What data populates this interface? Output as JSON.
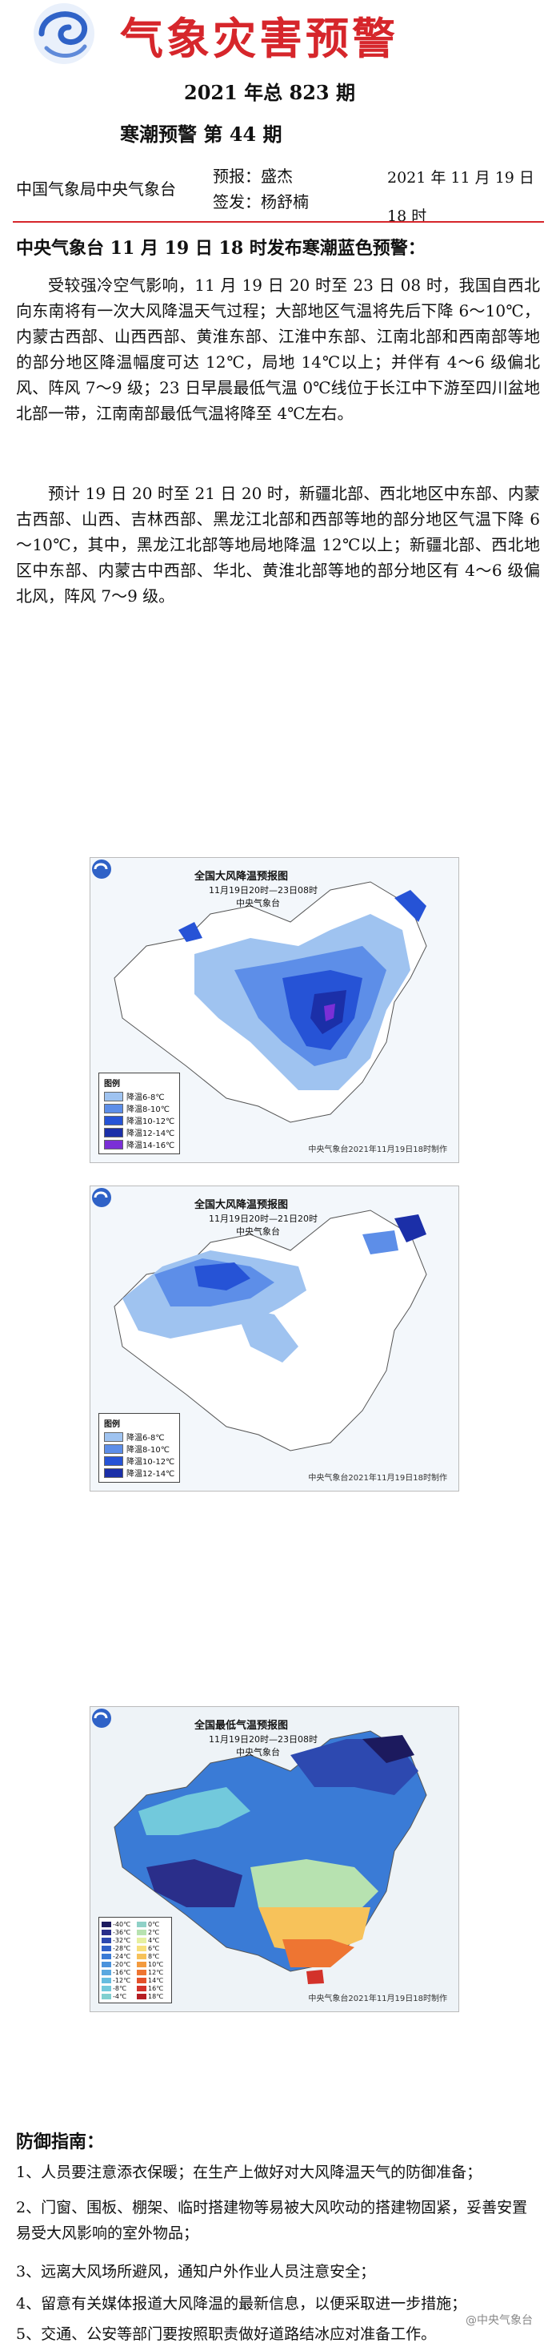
{
  "header": {
    "title": "气象灾害预警",
    "issue_total": "2021 年总 823 期",
    "issue_cold": "寒潮预警 第 44 期",
    "agency": "中国气象局中央气象台",
    "forecast_label": "预报：",
    "forecast_names": "盛杰",
    "sign_label": "签发：",
    "sign_name": "杨舒楠",
    "datetime": "2021 年 11 月 19 日 18 时"
  },
  "headline": "中央气象台 11 月 19 日 18 时发布寒潮蓝色预警：",
  "paragraphs": [
    "受较强冷空气影响，11 月 19 日 20 时至 23 日 08 时，我国自西北向东南将有一次大风降温天气过程；大部地区气温将先后下降 6～10℃，内蒙古西部、山西西部、黄淮东部、江淮中东部、江南北部和西南部等地的部分地区降温幅度可达 12℃，局地 14℃以上；并伴有 4～6 级偏北风、阵风 7～9 级；23 日早晨最低气温 0℃线位于长江中下游至四川盆地北部一带，江南南部最低气温将降至 4℃左右。",
    "预计 19 日 20 时至 21 日 20 时，新疆北部、西北地区中东部、内蒙古西部、山西、吉林西部、黑龙江北部和西部等地的部分地区气温下降 6～10℃，其中，黑龙江北部等地局地降温 12℃以上；新疆北部、西北地区中东部、内蒙古中西部、华北、黄淮北部等地的部分地区有 4～6 级偏北风，阵风 7～9 级。"
  ],
  "maps": [
    {
      "title": "全国大风降温预报图",
      "subtitle": "11月19日20时—23日08时",
      "org": "中央气象台",
      "stamp": "中央气象台2021年11月19日18时制作",
      "legend_title": "图例",
      "legend": [
        {
          "label": "降温6-8℃",
          "color": "#9fc3f0"
        },
        {
          "label": "降温8-10℃",
          "color": "#5d8ee8"
        },
        {
          "label": "降温10-12℃",
          "color": "#2653d6"
        },
        {
          "label": "降温12-14℃",
          "color": "#1b2fa8"
        },
        {
          "label": "降温14-16℃",
          "color": "#7b2fd6"
        }
      ]
    },
    {
      "title": "全国大风降温预报图",
      "subtitle": "11月19日20时—21日20时",
      "org": "中央气象台",
      "stamp": "中央气象台2021年11月19日18时制作",
      "legend_title": "图例",
      "legend": [
        {
          "label": "降温6-8℃",
          "color": "#9fc3f0"
        },
        {
          "label": "降温8-10℃",
          "color": "#5d8ee8"
        },
        {
          "label": "降温10-12℃",
          "color": "#2653d6"
        },
        {
          "label": "降温12-14℃",
          "color": "#1b2fa8"
        }
      ]
    },
    {
      "title": "全国最低气温预报图",
      "subtitle": "11月19日20时—23日08时",
      "org": "中央气象台",
      "stamp": "中央气象台2021年11月19日18时制作",
      "legend3": [
        {
          "label": "-40℃",
          "color": "#1c1a5e"
        },
        {
          "label": "0℃",
          "color": "#8fd1c7"
        },
        {
          "label": "-36℃",
          "color": "#2a2e8a"
        },
        {
          "label": "2℃",
          "color": "#b7e2b0"
        },
        {
          "label": "-32℃",
          "color": "#2d49b0"
        },
        {
          "label": "4℃",
          "color": "#e6f0a0"
        },
        {
          "label": "-28℃",
          "color": "#3061c8"
        },
        {
          "label": "6℃",
          "color": "#f7e07c"
        },
        {
          "label": "-24℃",
          "color": "#3a7bd6"
        },
        {
          "label": "8℃",
          "color": "#f7c25a"
        },
        {
          "label": "-20℃",
          "color": "#4a92dc"
        },
        {
          "label": "10℃",
          "color": "#f39a3e"
        },
        {
          "label": "-16℃",
          "color": "#5aa8e0"
        },
        {
          "label": "12℃",
          "color": "#ee7532"
        },
        {
          "label": "-12℃",
          "color": "#66bde0"
        },
        {
          "label": "14℃",
          "color": "#e4512a"
        },
        {
          "label": "-8℃",
          "color": "#72c9dc"
        },
        {
          "label": "16℃",
          "color": "#d3322a"
        },
        {
          "label": "-4℃",
          "color": "#80d0d0"
        },
        {
          "label": "18℃",
          "color": "#b51e24"
        }
      ]
    }
  ],
  "guide": {
    "title": "防御指南：",
    "items": [
      "1、人员要注意添衣保暖；在生产上做好对大风降温天气的防御准备；",
      "2、门窗、围板、棚架、临时搭建物等易被大风吹动的搭建物固紧，妥善安置易受大风影响的室外物品；",
      "3、远离大风场所避风，通知户外作业人员注意安全；",
      "4、留意有关媒体报道大风降温的最新信息，以便采取进一步措施；",
      "5、交通、公安等部门要按照职责做好道路结冰应对准备工作。"
    ]
  },
  "watermark": "@中央气象台"
}
